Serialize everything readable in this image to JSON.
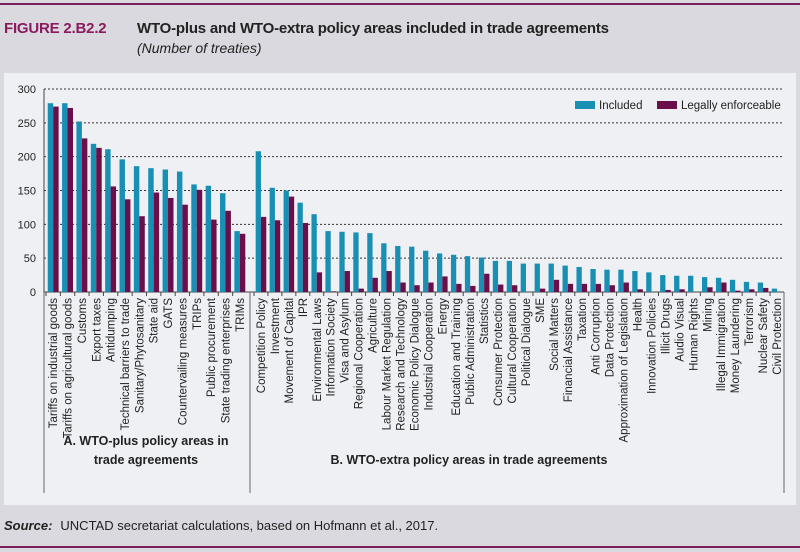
{
  "figure": {
    "label": "FIGURE 2.B2.2",
    "title": "WTO-plus and WTO-extra policy areas included in trade agreements",
    "subtitle": "(Number of treaties)",
    "source_label": "Source:",
    "source_text": "UNCTAD secretariat calculations, based on Hofmann et al., 2017."
  },
  "colors": {
    "included": "#1a8fb4",
    "legally_enforceable": "#6b0f4a",
    "accent": "#8b1a5e"
  },
  "chart_data": {
    "type": "bar",
    "title": "WTO-plus and WTO-extra policy areas included in trade agreements",
    "subtitle": "(Number of treaties)",
    "xlabel": "",
    "ylabel": "",
    "ylim": [
      0,
      300
    ],
    "yticks": [
      0,
      50,
      100,
      150,
      200,
      250,
      300
    ],
    "grid": true,
    "legend_position": "top-right",
    "legend": [
      "Included",
      "Legally enforceable"
    ],
    "groups": [
      {
        "name": "A. WTO-plus policy areas in trade agreements",
        "label_lines": [
          "A. WTO-plus policy areas in",
          "trade agreements"
        ],
        "categories": [
          "Tariffs on industrial goods",
          "Tariffs on agricultural goods",
          "Customs",
          "Export taxes",
          "Antidumping",
          "Technical barriers to trade",
          "Sanitary/Phytosanitary",
          "State aid",
          "GATS",
          "Countervailing measures",
          "TRIPs",
          "Public procurement",
          "State trading enterprises",
          "TRIMs"
        ],
        "series": [
          {
            "name": "Included",
            "values": [
              279,
              279,
              252,
              219,
              211,
              196,
              186,
              183,
              181,
              178,
              159,
              157,
              146,
              90
            ]
          },
          {
            "name": "Legally enforceable",
            "values": [
              274,
              272,
              227,
              213,
              156,
              137,
              112,
              147,
              139,
              129,
              151,
              107,
              120,
              86
            ]
          }
        ]
      },
      {
        "name": "B. WTO-extra policy areas in trade agreements",
        "label_lines": [
          "B. WTO-extra policy areas in trade agreements"
        ],
        "categories": [
          "Competition Policy",
          "Investment",
          "Movement of Capital",
          "IPR",
          "Environmental Laws",
          "Information Society",
          "Visa and Asylum",
          "Regional Cooperation",
          "Agriculture",
          "Labour Market Regulation",
          "Research and Technology",
          "Economic Policy Dialogue",
          "Industrial Cooperation",
          "Energy",
          "Education and Training",
          "Public Administration",
          "Statistics",
          "Consumer Protection",
          "Cultural Cooperation",
          "Political Dialogue",
          "SME",
          "Social Matters",
          "Financial Assistance",
          "Taxation",
          "Anti Corruption",
          "Data Protection",
          "Approximation of Legislation",
          "Health",
          "Innovation Policies",
          "Illicit Drugs",
          "Audio Visual",
          "Human Rights",
          "Mining",
          "Illegal Immigration",
          "Money Laundering",
          "Terrorism",
          "Nuclear Safety",
          "Civil Protection"
        ],
        "series": [
          {
            "name": "Included",
            "values": [
              208,
              154,
              150,
              132,
              115,
              90,
              89,
              88,
              87,
              72,
              68,
              67,
              61,
              57,
              55,
              53,
              51,
              46,
              46,
              42,
              42,
              42,
              39,
              37,
              34,
              33,
              33,
              31,
              29,
              25,
              24,
              24,
              22,
              21,
              18,
              15,
              14,
              5
            ]
          },
          {
            "name": "Legally enforceable",
            "values": [
              111,
              106,
              141,
              102,
              29,
              1,
              31,
              5,
              21,
              31,
              14,
              10,
              14,
              23,
              12,
              9,
              27,
              11,
              10,
              0,
              5,
              18,
              12,
              12,
              12,
              10,
              14,
              4,
              0,
              3,
              4,
              0,
              7,
              14,
              2,
              4,
              6,
              0
            ]
          }
        ]
      }
    ]
  }
}
